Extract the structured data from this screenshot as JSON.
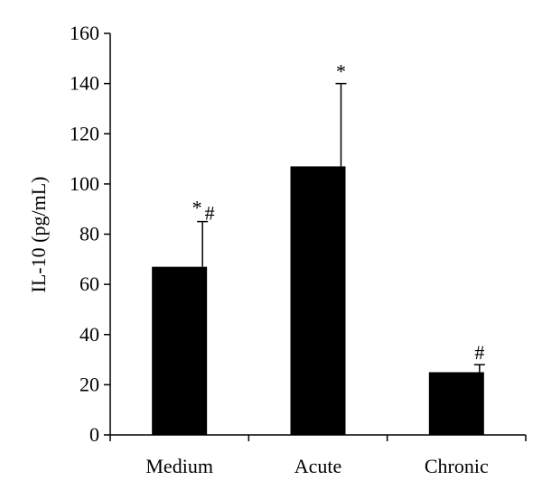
{
  "chart_data": {
    "type": "bar",
    "title": "",
    "xlabel": "",
    "ylabel": "IL-10 (pg/mL)",
    "ylim": [
      0,
      160
    ],
    "yticks": [
      "0",
      "20",
      "40",
      "60",
      "80",
      "100",
      "120",
      "140",
      "160"
    ],
    "categories": [
      "Medium",
      "Acute",
      "Chronic"
    ],
    "values": [
      67,
      107,
      25
    ],
    "error_upper": [
      85,
      140,
      28
    ],
    "significance": [
      "*#",
      "*",
      "#"
    ],
    "grid": false,
    "legend": "none",
    "bar_color": "#000000"
  }
}
